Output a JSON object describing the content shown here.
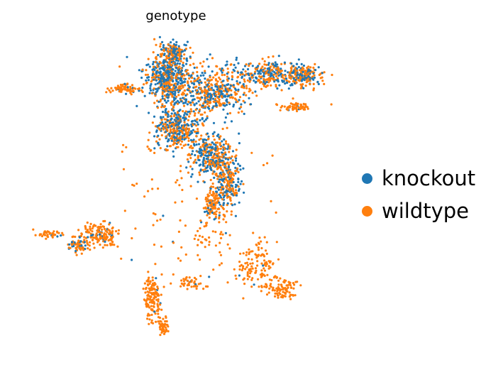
{
  "chart_data": {
    "type": "scatter",
    "title": "genotype",
    "xlabel": "",
    "ylabel": "",
    "grid": false,
    "axes_visible": false,
    "legend_placement": "right",
    "series": [
      {
        "name": "knockout",
        "color": "#1f77b4"
      },
      {
        "name": "wildtype",
        "color": "#ff7f0e"
      }
    ],
    "note_values": "points are an unlabeled embedding; no axis values are printed"
  }
}
